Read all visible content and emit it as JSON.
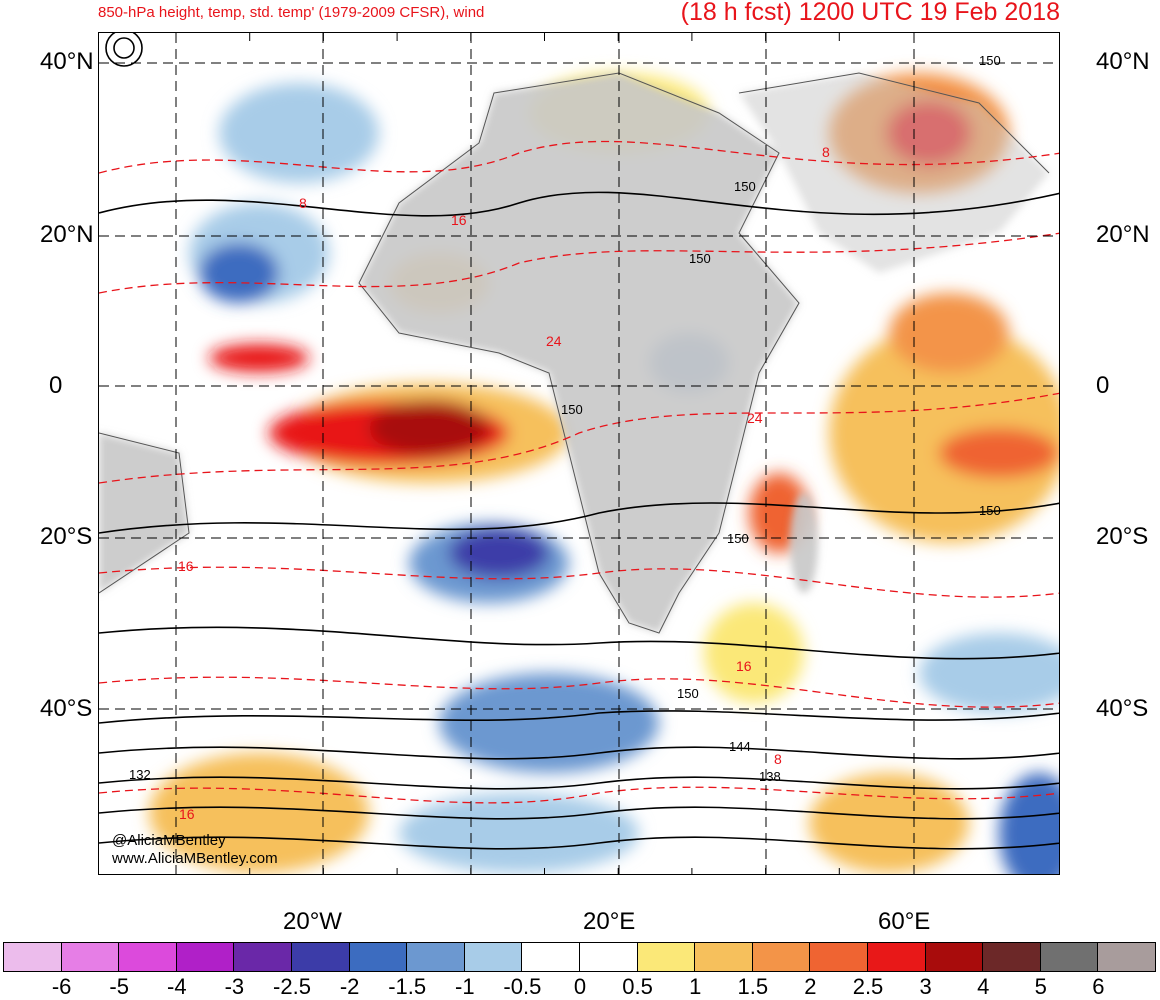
{
  "title_left": "850-hPa height, temp, std. temp' (1979-2009 CFSR), wind",
  "title_right": "(18 h fcst) 1200 UTC 19 Feb 2018",
  "lat_labels": [
    "40°N",
    "20°N",
    "0",
    "20°S",
    "40°S"
  ],
  "lon_labels": [
    "20°W",
    "20°E",
    "60°E"
  ],
  "credits": [
    "@AliciaMBentley",
    "www.AliciaMBentley.com"
  ],
  "height_contour_labels": [
    "150",
    "150",
    "150",
    "150",
    "150",
    "150",
    "150",
    "144",
    "138",
    "132"
  ],
  "temp_contour_labels": [
    "8",
    "16",
    "24",
    "24",
    "16",
    "16",
    "8",
    "8",
    "16"
  ],
  "colorbar": {
    "labels": [
      "-6",
      "-5",
      "-4",
      "-3",
      "-2.5",
      "-2",
      "-1.5",
      "-1",
      "-0.5",
      "0",
      "0.5",
      "1",
      "1.5",
      "2",
      "2.5",
      "3",
      "4",
      "5",
      "6"
    ],
    "colors": [
      "#ecbcec",
      "#e67ee6",
      "#dc4adc",
      "#b020c8",
      "#6a28a8",
      "#3c3ca8",
      "#3c6cc0",
      "#6c98d0",
      "#a8cce8",
      "#ffffff",
      "#ffffff",
      "#fbe878",
      "#f6c05c",
      "#f39448",
      "#ef6432",
      "#e81818",
      "#a80c0c",
      "#6c2828",
      "#707070",
      "#a89c9c"
    ]
  },
  "palette": {
    "title_red": "#e8141b",
    "land_gray": "#c8c8c8",
    "contour_black": "#000000",
    "contour_red": "#e8141b"
  }
}
